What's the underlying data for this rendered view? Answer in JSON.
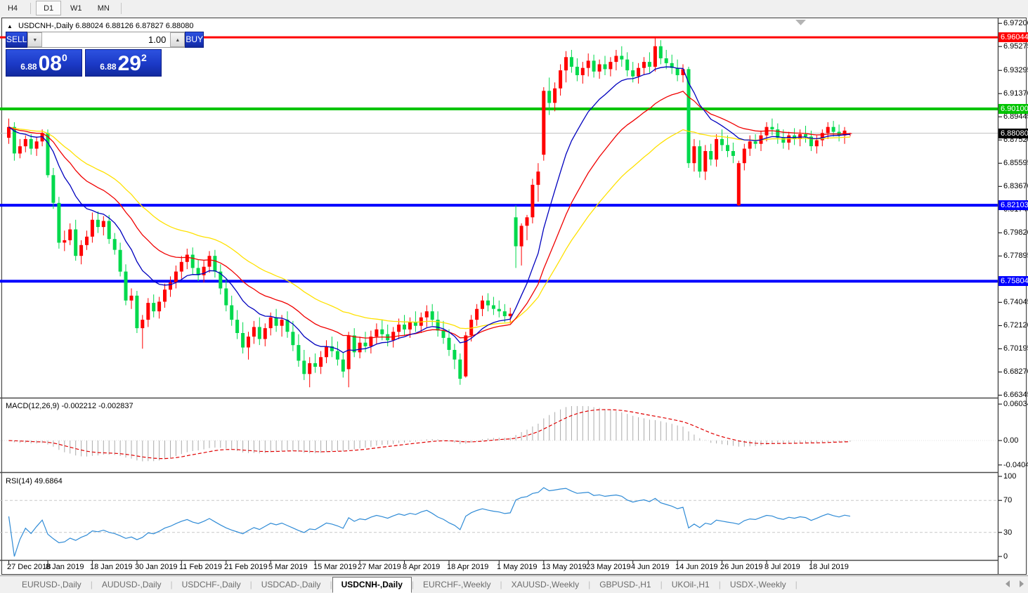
{
  "toolbar": {
    "buttons": [
      "H4",
      "D1",
      "W1",
      "MN"
    ],
    "active": "D1"
  },
  "chart": {
    "title_symbol": "USDCNH-,Daily",
    "title_ohlc": "6.88024 6.88126 6.87827 6.88080",
    "current_price": "6.88080"
  },
  "trade_panel": {
    "sell_label": "SELL",
    "buy_label": "BUY",
    "volume": "1.00",
    "bid": {
      "prefix": "6.88",
      "big": "08",
      "sup": "0"
    },
    "ask": {
      "prefix": "6.88",
      "big": "29",
      "sup": "2"
    }
  },
  "price_axis": {
    "ticks": [
      "6.97200",
      "6.95275",
      "6.93295",
      "6.91370",
      "6.89445",
      "6.87520",
      "6.85595",
      "6.83670",
      "6.81745",
      "6.79820",
      "6.77895",
      "6.74045",
      "6.72120",
      "6.70195",
      "6.68270",
      "6.66345"
    ],
    "badges": [
      {
        "text": "6.96044",
        "bg": "#ff0000"
      },
      {
        "text": "6.90100",
        "bg": "#00c400"
      },
      {
        "text": "6.88080",
        "bg": "#000000"
      },
      {
        "text": "6.82103",
        "bg": "#0000ff"
      },
      {
        "text": "6.75804",
        "bg": "#0000ff"
      }
    ]
  },
  "macd_panel": {
    "label": "MACD(12,26,9)",
    "value1": "-0.002212",
    "value2": "-0.002837",
    "axis": [
      "0.060342",
      "0.00",
      "-0.040415"
    ]
  },
  "rsi_panel": {
    "label": "RSI(14)",
    "value": "49.6864",
    "axis": [
      "100",
      "70",
      "30",
      "0"
    ],
    "levels": [
      70,
      30
    ]
  },
  "date_axis": {
    "labels": [
      {
        "text": "27 Dec 2018",
        "i": 0
      },
      {
        "text": "8 Jan 2019",
        "i": 7
      },
      {
        "text": "18 Jan 2019",
        "i": 15
      },
      {
        "text": "30 Jan 2019",
        "i": 23
      },
      {
        "text": "11 Feb 2019",
        "i": 31
      },
      {
        "text": "21 Feb 2019",
        "i": 39
      },
      {
        "text": "5 Mar 2019",
        "i": 47
      },
      {
        "text": "15 Mar 2019",
        "i": 55
      },
      {
        "text": "27 Mar 2019",
        "i": 63
      },
      {
        "text": "8 Apr 2019",
        "i": 71
      },
      {
        "text": "18 Apr 2019",
        "i": 79
      },
      {
        "text": "1 May 2019",
        "i": 88
      },
      {
        "text": "13 May 2019",
        "i": 96
      },
      {
        "text": "23 May 2019",
        "i": 104
      },
      {
        "text": "4 Jun 2019",
        "i": 112
      },
      {
        "text": "14 Jun 2019",
        "i": 120
      },
      {
        "text": "26 Jun 2019",
        "i": 128
      },
      {
        "text": "8 Jul 2019",
        "i": 136
      },
      {
        "text": "18 Jul 2019",
        "i": 144
      }
    ]
  },
  "tabs": {
    "items": [
      "EURUSD-,Daily",
      "AUDUSD-,Daily",
      "USDCHF-,Daily",
      "USDCAD-,Daily",
      "USDCNH-,Daily",
      "EURCHF-,Weekly",
      "XAUUSD-,Weekly",
      "GBPUSD-,H1",
      "UKOil-,H1",
      "USDX-,Weekly"
    ],
    "active_index": 4
  },
  "chart_data": {
    "type": "candlestick",
    "symbol": "USDCNH",
    "timeframe": "Daily",
    "bull_color": "#ff0000",
    "bear_color": "#00d94c",
    "price_range_shown": [
      6.66345,
      6.972
    ],
    "hlines": [
      {
        "price": 6.96044,
        "color": "#ff0000",
        "width": 3
      },
      {
        "price": 6.901,
        "color": "#00c400",
        "width": 4
      },
      {
        "price": 6.82103,
        "color": "#0000ff",
        "width": 4
      },
      {
        "price": 6.75804,
        "color": "#0000ff",
        "width": 4
      }
    ],
    "current_price_line": {
      "price": 6.8808,
      "color": "#c0c0c0"
    },
    "ma_series": [
      {
        "name": "MA fast",
        "period": 12,
        "color": "#0000be"
      },
      {
        "name": "MA medium",
        "period": 24,
        "color": "#f00000"
      },
      {
        "name": "MA slow",
        "period": 40,
        "color": "#ffe100"
      }
    ],
    "macd": {
      "fast": 12,
      "slow": 26,
      "signal": 9,
      "hist_color": "#ababab",
      "signal_color": "#e00000"
    },
    "rsi": {
      "period": 14,
      "color": "#2f8bd6",
      "level_color": "#c8c8c8"
    },
    "candles": [
      [
        6.877,
        6.893,
        6.872,
        6.886
      ],
      [
        6.886,
        6.89,
        6.858,
        6.864
      ],
      [
        6.864,
        6.876,
        6.86,
        6.87
      ],
      [
        6.87,
        6.879,
        6.865,
        6.876
      ],
      [
        6.876,
        6.88,
        6.863,
        6.868
      ],
      [
        6.868,
        6.878,
        6.862,
        6.874
      ],
      [
        6.874,
        6.884,
        6.87,
        6.881
      ],
      [
        6.881,
        6.884,
        6.844,
        6.846
      ],
      [
        6.846,
        6.852,
        6.818,
        6.823
      ],
      [
        6.823,
        6.828,
        6.785,
        6.79
      ],
      [
        6.79,
        6.8,
        6.783,
        6.792
      ],
      [
        6.792,
        6.806,
        6.788,
        6.801
      ],
      [
        6.801,
        6.809,
        6.775,
        6.779
      ],
      [
        6.779,
        6.792,
        6.772,
        6.788
      ],
      [
        6.788,
        6.8,
        6.784,
        6.795
      ],
      [
        6.795,
        6.815,
        6.79,
        6.809
      ],
      [
        6.809,
        6.816,
        6.798,
        6.803
      ],
      [
        6.803,
        6.812,
        6.796,
        6.808
      ],
      [
        6.808,
        6.813,
        6.789,
        6.793
      ],
      [
        6.793,
        6.798,
        6.78,
        6.784
      ],
      [
        6.784,
        6.79,
        6.762,
        6.766
      ],
      [
        6.766,
        6.772,
        6.738,
        6.742
      ],
      [
        6.742,
        6.752,
        6.735,
        6.746
      ],
      [
        6.746,
        6.75,
        6.715,
        6.719
      ],
      [
        6.719,
        6.73,
        6.702,
        6.726
      ],
      [
        6.726,
        6.744,
        6.72,
        6.74
      ],
      [
        6.74,
        6.747,
        6.728,
        6.733
      ],
      [
        6.733,
        6.745,
        6.727,
        6.741
      ],
      [
        6.741,
        6.756,
        6.736,
        6.751
      ],
      [
        6.751,
        6.762,
        6.745,
        6.757
      ],
      [
        6.757,
        6.771,
        6.752,
        6.766
      ],
      [
        6.766,
        6.779,
        6.76,
        6.774
      ],
      [
        6.774,
        6.785,
        6.768,
        6.78
      ],
      [
        6.78,
        6.786,
        6.764,
        6.769
      ],
      [
        6.769,
        6.776,
        6.758,
        6.763
      ],
      [
        6.763,
        6.775,
        6.757,
        6.77
      ],
      [
        6.77,
        6.783,
        6.765,
        6.779
      ],
      [
        6.779,
        6.784,
        6.761,
        6.766
      ],
      [
        6.766,
        6.772,
        6.747,
        6.752
      ],
      [
        6.752,
        6.76,
        6.733,
        6.738
      ],
      [
        6.738,
        6.746,
        6.721,
        6.726
      ],
      [
        6.726,
        6.734,
        6.71,
        6.715
      ],
      [
        6.715,
        6.724,
        6.698,
        6.703
      ],
      [
        6.703,
        6.716,
        6.693,
        6.712
      ],
      [
        6.712,
        6.725,
        6.706,
        6.72
      ],
      [
        6.72,
        6.728,
        6.705,
        6.71
      ],
      [
        6.71,
        6.723,
        6.704,
        6.719
      ],
      [
        6.719,
        6.732,
        6.713,
        6.728
      ],
      [
        6.728,
        6.735,
        6.716,
        6.721
      ],
      [
        6.721,
        6.73,
        6.712,
        6.726
      ],
      [
        6.726,
        6.733,
        6.711,
        6.716
      ],
      [
        6.716,
        6.725,
        6.7,
        6.705
      ],
      [
        6.705,
        6.714,
        6.687,
        6.692
      ],
      [
        6.692,
        6.701,
        6.676,
        6.681
      ],
      [
        6.681,
        6.695,
        6.67,
        6.69
      ],
      [
        6.69,
        6.698,
        6.682,
        6.687
      ],
      [
        6.687,
        6.7,
        6.681,
        6.695
      ],
      [
        6.695,
        6.709,
        6.69,
        6.704
      ],
      [
        6.704,
        6.712,
        6.695,
        6.7
      ],
      [
        6.7,
        6.708,
        6.688,
        6.693
      ],
      [
        6.693,
        6.699,
        6.678,
        6.683
      ],
      [
        6.685,
        6.716,
        6.67,
        6.713
      ],
      [
        6.713,
        6.719,
        6.695,
        6.699
      ],
      [
        6.699,
        6.712,
        6.694,
        6.707
      ],
      [
        6.707,
        6.716,
        6.699,
        6.704
      ],
      [
        6.704,
        6.717,
        6.698,
        6.712
      ],
      [
        6.712,
        6.723,
        6.706,
        6.718
      ],
      [
        6.718,
        6.726,
        6.709,
        6.714
      ],
      [
        6.714,
        6.722,
        6.704,
        6.709
      ],
      [
        6.709,
        6.72,
        6.703,
        6.716
      ],
      [
        6.716,
        6.727,
        6.71,
        6.722
      ],
      [
        6.722,
        6.73,
        6.713,
        6.718
      ],
      [
        6.718,
        6.728,
        6.711,
        6.724
      ],
      [
        6.724,
        6.733,
        6.716,
        6.721
      ],
      [
        6.721,
        6.732,
        6.715,
        6.728
      ],
      [
        6.728,
        6.738,
        6.72,
        6.733
      ],
      [
        6.733,
        6.739,
        6.721,
        6.726
      ],
      [
        6.726,
        6.733,
        6.712,
        6.717
      ],
      [
        6.717,
        6.725,
        6.706,
        6.711
      ],
      [
        6.711,
        6.718,
        6.696,
        6.701
      ],
      [
        6.701,
        6.706,
        6.685,
        6.693
      ],
      [
        6.693,
        6.698,
        6.672,
        6.677
      ],
      [
        6.679,
        6.716,
        6.678,
        6.713
      ],
      [
        6.713,
        6.73,
        6.708,
        6.726
      ],
      [
        6.726,
        6.739,
        6.721,
        6.735
      ],
      [
        6.735,
        6.746,
        6.729,
        6.742
      ],
      [
        6.742,
        6.748,
        6.733,
        6.738
      ],
      [
        6.738,
        6.745,
        6.73,
        6.735
      ],
      [
        6.735,
        6.742,
        6.728,
        6.733
      ],
      [
        6.733,
        6.739,
        6.724,
        6.729
      ],
      [
        6.729,
        6.736,
        6.723,
        6.731
      ],
      [
        6.811,
        6.821,
        6.769,
        6.787
      ],
      [
        6.787,
        6.806,
        6.771,
        6.804
      ],
      [
        6.804,
        6.813,
        6.792,
        6.811
      ],
      [
        6.811,
        6.843,
        6.806,
        6.838
      ],
      [
        6.838,
        6.856,
        6.824,
        6.849
      ],
      [
        6.863,
        6.919,
        6.858,
        6.916
      ],
      [
        6.916,
        6.927,
        6.896,
        6.906
      ],
      [
        6.906,
        6.923,
        6.899,
        6.918
      ],
      [
        6.918,
        6.938,
        6.912,
        6.933
      ],
      [
        6.933,
        6.949,
        6.923,
        6.944
      ],
      [
        6.944,
        6.95,
        6.931,
        6.936
      ],
      [
        6.936,
        6.943,
        6.924,
        6.929
      ],
      [
        6.929,
        6.94,
        6.922,
        6.935
      ],
      [
        6.935,
        6.947,
        6.928,
        6.941
      ],
      [
        6.941,
        6.946,
        6.927,
        6.932
      ],
      [
        6.932,
        6.942,
        6.926,
        6.938
      ],
      [
        6.938,
        6.945,
        6.929,
        6.934
      ],
      [
        6.934,
        6.944,
        6.928,
        6.94
      ],
      [
        6.94,
        6.95,
        6.933,
        6.945
      ],
      [
        6.945,
        6.953,
        6.936,
        6.942
      ],
      [
        6.942,
        6.948,
        6.928,
        6.933
      ],
      [
        6.933,
        6.94,
        6.923,
        6.928
      ],
      [
        6.928,
        6.939,
        6.922,
        6.935
      ],
      [
        6.935,
        6.944,
        6.929,
        6.94
      ],
      [
        6.94,
        6.948,
        6.931,
        6.936
      ],
      [
        6.936,
        6.9604,
        6.932,
        6.953
      ],
      [
        6.953,
        6.958,
        6.938,
        6.943
      ],
      [
        6.943,
        6.95,
        6.934,
        6.939
      ],
      [
        6.939,
        6.946,
        6.93,
        6.935
      ],
      [
        6.935,
        6.942,
        6.924,
        6.929
      ],
      [
        6.929,
        6.938,
        6.923,
        6.934
      ],
      [
        6.934,
        6.936,
        6.852,
        6.856
      ],
      [
        6.856,
        6.876,
        6.849,
        6.87
      ],
      [
        6.87,
        6.875,
        6.844,
        6.849
      ],
      [
        6.849,
        6.871,
        6.842,
        6.866
      ],
      [
        6.866,
        6.872,
        6.854,
        6.859
      ],
      [
        6.859,
        6.88,
        6.853,
        6.876
      ],
      [
        6.876,
        6.884,
        6.866,
        6.871
      ],
      [
        6.871,
        6.879,
        6.861,
        6.866
      ],
      [
        6.866,
        6.873,
        6.856,
        6.862
      ],
      [
        6.821,
        6.858,
        6.8205,
        6.856
      ],
      [
        6.856,
        6.872,
        6.85,
        6.868
      ],
      [
        6.868,
        6.879,
        6.862,
        6.874
      ],
      [
        6.874,
        6.88,
        6.868,
        6.872
      ],
      [
        6.872,
        6.883,
        6.866,
        6.879
      ],
      [
        6.879,
        6.89,
        6.874,
        6.886
      ],
      [
        6.886,
        6.893,
        6.879,
        6.884
      ],
      [
        6.884,
        6.889,
        6.872,
        6.877
      ],
      [
        6.877,
        6.884,
        6.868,
        6.873
      ],
      [
        6.873,
        6.882,
        6.867,
        6.879
      ],
      [
        6.879,
        6.885,
        6.871,
        6.876
      ],
      [
        6.876,
        6.884,
        6.87,
        6.88
      ],
      [
        6.88,
        6.887,
        6.873,
        6.878
      ],
      [
        6.878,
        6.883,
        6.866,
        6.87
      ],
      [
        6.87,
        6.879,
        6.864,
        6.875
      ],
      [
        6.875,
        6.884,
        6.87,
        6.881
      ],
      [
        6.881,
        6.89,
        6.876,
        6.886
      ],
      [
        6.886,
        6.891,
        6.878,
        6.882
      ],
      [
        6.882,
        6.888,
        6.874,
        6.879
      ],
      [
        6.879,
        6.886,
        6.872,
        6.883
      ],
      [
        6.88024,
        6.88126,
        6.87827,
        6.8808
      ]
    ]
  }
}
